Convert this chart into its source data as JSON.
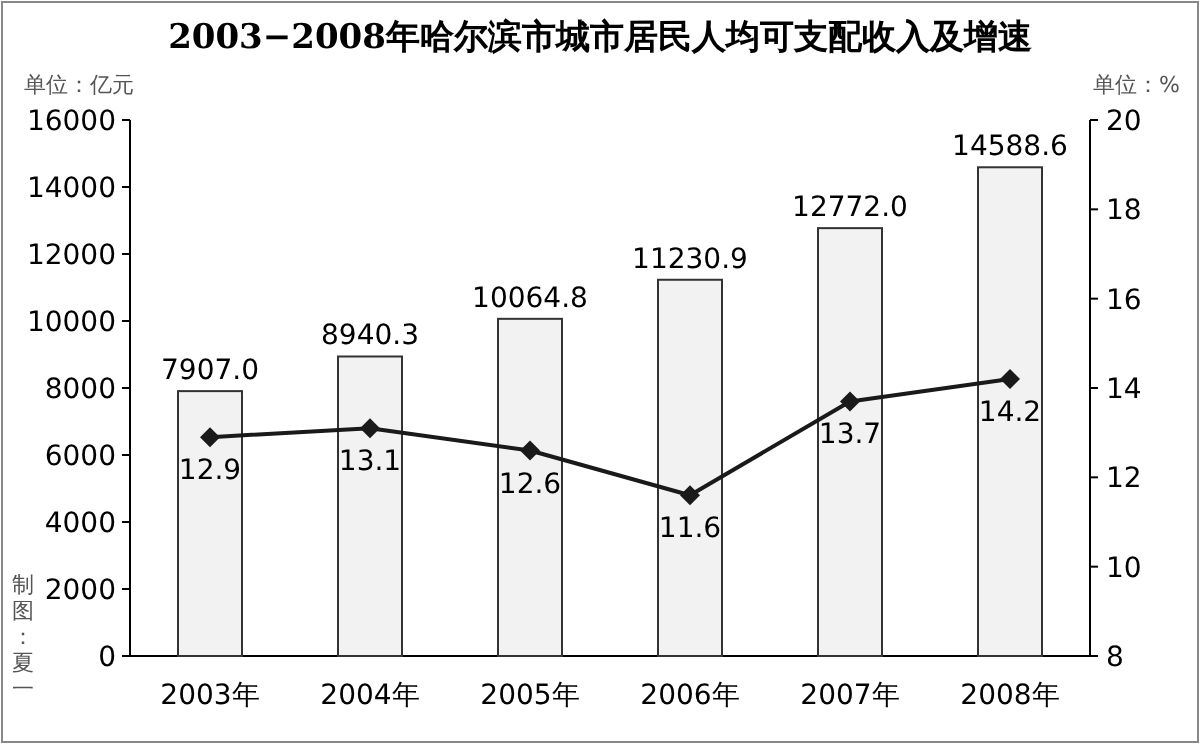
{
  "chart_data": {
    "type": "bar",
    "title": "2003−2008年哈尔滨市城市居民人均可支配收入及增速",
    "ylabel": "单位：亿元",
    "y2label": "单位：%",
    "annotations": [
      "制图：夏一"
    ],
    "categories": [
      "2003年",
      "2004年",
      "2005年",
      "2006年",
      "2007年",
      "2008年"
    ],
    "series": [
      {
        "color": "#f2f2f2",
        "values": [
          7907.0,
          8940.3,
          10064.8,
          11230.9,
          12772.0,
          14588.6
        ],
        "value_labels": [
          "7907.0",
          "8940.3",
          "10064.8",
          "11230.9",
          "12772.0",
          "14588.6"
        ]
      },
      {
        "type": "line",
        "axis": "y2",
        "color": "#1a1a1a",
        "marker": "diamond",
        "values": [
          12.9,
          13.1,
          12.6,
          11.6,
          13.7,
          14.2
        ]
      }
    ],
    "data_labels": true,
    "ylim": [
      0,
      16000
    ],
    "yticks": [
      0,
      2000,
      4000,
      6000,
      8000,
      10000,
      12000,
      14000,
      16000
    ],
    "y2lim": [
      8,
      20
    ],
    "y2ticks": [
      8,
      10,
      12,
      14,
      16,
      18,
      20
    ],
    "grid": false
  }
}
